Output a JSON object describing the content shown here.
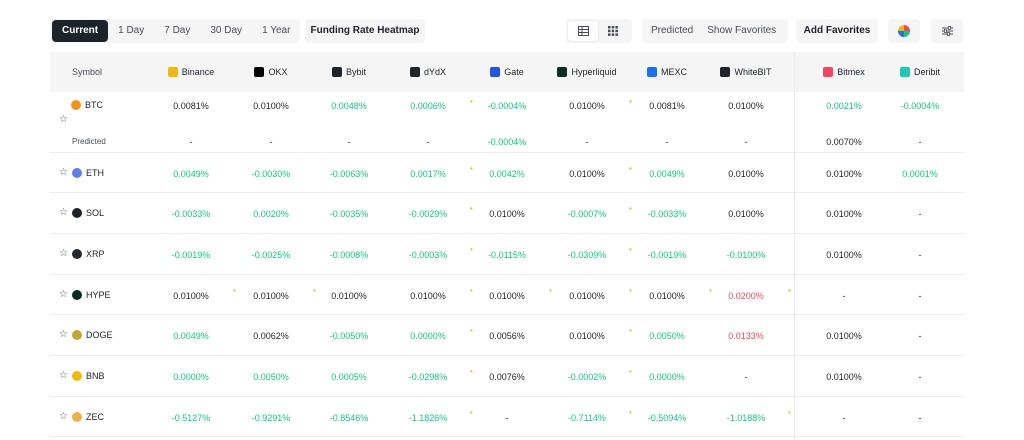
{
  "toolbar": {
    "tabs": [
      "Current",
      "1 Day",
      "7 Day",
      "30 Day",
      "1 Year"
    ],
    "active_tab": "Current",
    "heatmap_label": "Funding Rate Heatmap",
    "predicted_label": "Predicted",
    "show_favorites_label": "Show Favorites",
    "add_favorites_label": "Add Favorites"
  },
  "table": {
    "symbol_header": "Symbol",
    "predicted_label": "Predicted",
    "exchanges": [
      {
        "name": "Binance",
        "color": "#f0b90b"
      },
      {
        "name": "OKX",
        "color": "#000000"
      },
      {
        "name": "Bybit",
        "color": "#1e2329"
      },
      {
        "name": "dYdX",
        "color": "#1e2329"
      },
      {
        "name": "Gate",
        "color": "#2354e6"
      },
      {
        "name": "Hyperliquid",
        "color": "#0b2e24"
      },
      {
        "name": "MEXC",
        "color": "#1972f5"
      },
      {
        "name": "WhiteBIT",
        "color": "#1e2329"
      },
      {
        "name": "Bitmex",
        "color": "#f6465d"
      },
      {
        "name": "Deribit",
        "color": "#1ec8b2"
      }
    ],
    "rows": [
      {
        "symbol": "BTC",
        "coin_color": "#f7931a",
        "values": [
          "0.0081%",
          "0.0100%",
          "0.0048%",
          "0.0006%",
          "-0.0004%",
          "0.0100%",
          "0.0081%",
          "0.0100%",
          "0.0021%",
          "-0.0004%"
        ],
        "predicted": [
          "-",
          "-",
          "-",
          "-",
          "-0.0004%",
          "-",
          "-",
          "-",
          "0.0070%",
          "-"
        ]
      },
      {
        "symbol": "ETH",
        "coin_color": "#627eea",
        "values": [
          "0.0049%",
          "-0.0030%",
          "-0.0063%",
          "0.0017%",
          "0.0042%",
          "0.0100%",
          "0.0049%",
          "0.0100%",
          "0.0100%",
          "0.0001%"
        ]
      },
      {
        "symbol": "SOL",
        "coin_color": "#1e2329",
        "values": [
          "-0.0033%",
          "0.0020%",
          "-0.0035%",
          "-0.0029%",
          "0.0100%",
          "-0.0007%",
          "-0.0033%",
          "0.0100%",
          "0.0100%",
          "-"
        ]
      },
      {
        "symbol": "XRP",
        "coin_color": "#23292f",
        "values": [
          "-0.0019%",
          "-0.0025%",
          "-0.0008%",
          "-0.0003%",
          "-0.0115%",
          "-0.0309%",
          "-0.0019%",
          "-0.0100%",
          "0.0100%",
          "-"
        ]
      },
      {
        "symbol": "HYPE",
        "coin_color": "#0b2e24",
        "values": [
          "0.0100%",
          "0.0100%",
          "0.0100%",
          "0.0100%",
          "0.0100%",
          "0.0100%",
          "0.0100%",
          "0.0200%",
          "-",
          "-"
        ]
      },
      {
        "symbol": "DOGE",
        "coin_color": "#c2a633",
        "values": [
          "0.0049%",
          "0.0062%",
          "-0.0050%",
          "0.0000%",
          "0.0056%",
          "0.0100%",
          "0.0050%",
          "0.0133%",
          "0.0100%",
          "-"
        ]
      },
      {
        "symbol": "BNB",
        "coin_color": "#f0b90b",
        "values": [
          "0.0000%",
          "0.0050%",
          "0.0005%",
          "-0.0298%",
          "0.0076%",
          "-0.0002%",
          "0.0000%",
          "-",
          "0.0100%",
          "-"
        ]
      },
      {
        "symbol": "ZEC",
        "coin_color": "#ecb244",
        "values": [
          "-0.5127%",
          "-0.9291%",
          "-0.8546%",
          "-1.1826%",
          "-",
          "-0.7114%",
          "-0.5094%",
          "-1.0188%",
          "-",
          "-"
        ]
      }
    ]
  }
}
